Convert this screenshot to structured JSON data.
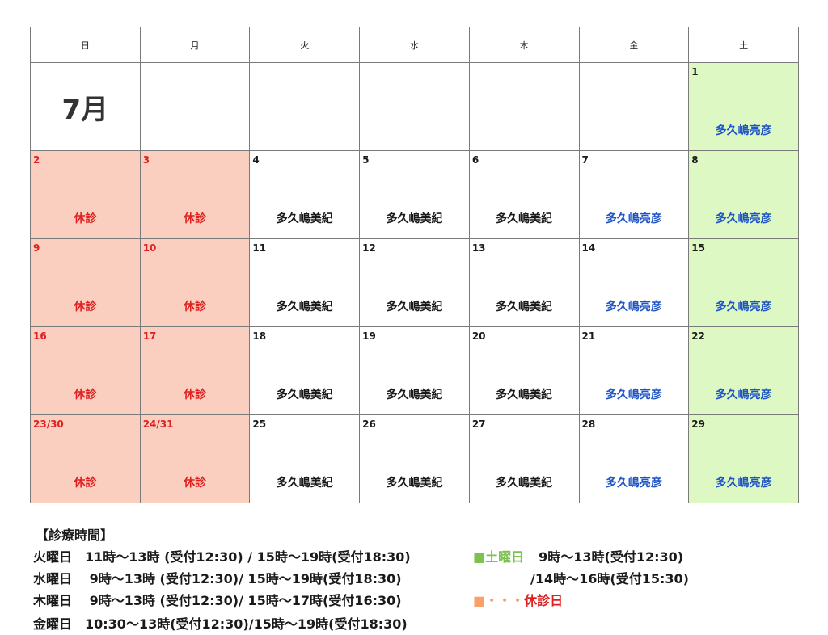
{
  "weekdays": [
    "日",
    "月",
    "火",
    "水",
    "木",
    "金",
    "土"
  ],
  "month_label": "7月",
  "colors": {
    "closed_bg": "#fbcfbf",
    "saturday_bg": "#ddf8c2",
    "blue_text": "#1f55c4",
    "red_text": "#e02020"
  },
  "weeks": [
    [
      {
        "day": "",
        "doctor": "",
        "type": "month"
      },
      {
        "day": "",
        "doctor": "",
        "type": "empty"
      },
      {
        "day": "",
        "doctor": "",
        "type": "empty"
      },
      {
        "day": "",
        "doctor": "",
        "type": "empty"
      },
      {
        "day": "",
        "doctor": "",
        "type": "empty"
      },
      {
        "day": "",
        "doctor": "",
        "type": "empty"
      },
      {
        "day": "1",
        "doctor": "多久嶋亮彦",
        "type": "sat"
      }
    ],
    [
      {
        "day": "2",
        "doctor": "休診",
        "type": "closed"
      },
      {
        "day": "3",
        "doctor": "休診",
        "type": "closed"
      },
      {
        "day": "4",
        "doctor": "多久嶋美紀",
        "type": "black"
      },
      {
        "day": "5",
        "doctor": "多久嶋美紀",
        "type": "black"
      },
      {
        "day": "6",
        "doctor": "多久嶋美紀",
        "type": "black"
      },
      {
        "day": "7",
        "doctor": "多久嶋亮彦",
        "type": "blue"
      },
      {
        "day": "8",
        "doctor": "多久嶋亮彦",
        "type": "sat"
      }
    ],
    [
      {
        "day": "9",
        "doctor": "休診",
        "type": "closed"
      },
      {
        "day": "10",
        "doctor": "休診",
        "type": "closed"
      },
      {
        "day": "11",
        "doctor": "多久嶋美紀",
        "type": "black"
      },
      {
        "day": "12",
        "doctor": "多久嶋美紀",
        "type": "black"
      },
      {
        "day": "13",
        "doctor": "多久嶋美紀",
        "type": "black"
      },
      {
        "day": "14",
        "doctor": "多久嶋亮彦",
        "type": "blue"
      },
      {
        "day": "15",
        "doctor": "多久嶋亮彦",
        "type": "sat"
      }
    ],
    [
      {
        "day": "16",
        "doctor": "休診",
        "type": "closed"
      },
      {
        "day": "17",
        "doctor": "休診",
        "type": "closed"
      },
      {
        "day": "18",
        "doctor": "多久嶋美紀",
        "type": "black"
      },
      {
        "day": "19",
        "doctor": "多久嶋美紀",
        "type": "black"
      },
      {
        "day": "20",
        "doctor": "多久嶋美紀",
        "type": "black"
      },
      {
        "day": "21",
        "doctor": "多久嶋亮彦",
        "type": "blue"
      },
      {
        "day": "22",
        "doctor": "多久嶋亮彦",
        "type": "sat"
      }
    ],
    [
      {
        "day": "23/30",
        "doctor": "休診",
        "type": "closed"
      },
      {
        "day": "24/31",
        "doctor": "休診",
        "type": "closed"
      },
      {
        "day": "25",
        "doctor": "多久嶋美紀",
        "type": "black"
      },
      {
        "day": "26",
        "doctor": "多久嶋美紀",
        "type": "black"
      },
      {
        "day": "27",
        "doctor": "多久嶋美紀",
        "type": "black"
      },
      {
        "day": "28",
        "doctor": "多久嶋亮彦",
        "type": "blue"
      },
      {
        "day": "29",
        "doctor": "多久嶋亮彦",
        "type": "sat"
      }
    ]
  ],
  "hours": {
    "title": "【診療時間】",
    "tue": "火曜日　11時～13時 (受付12:30) / 15時～19時(受付18:30)",
    "wed": "水曜日　 9時～13時 (受付12:30)/ 15時～19時(受付18:30)",
    "thu": "木曜日　 9時～13時 (受付12:30)/ 15時～17時(受付16:30)",
    "fri": "金曜日　10:30～13時(受付12:30)/15時～19時(受付18:30)",
    "sat_label": "■土曜日",
    "sat_line1": "9時～13時(受付12:30)",
    "sat_line2": "/14時～16時(受付15:30)",
    "closed_marker": "■・・・",
    "closed_label": "休診日"
  }
}
